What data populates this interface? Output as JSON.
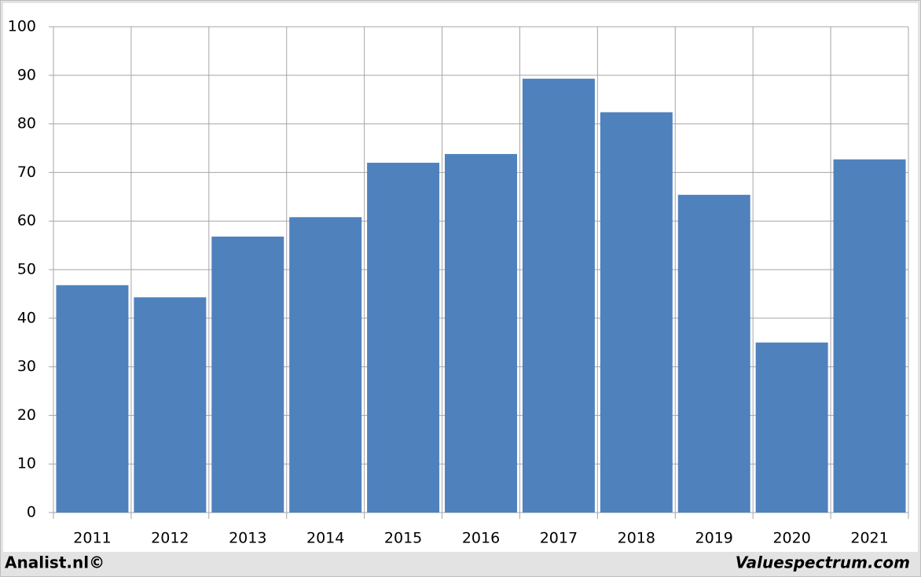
{
  "chart_data": {
    "type": "bar",
    "categories": [
      "2011",
      "2012",
      "2013",
      "2014",
      "2015",
      "2016",
      "2017",
      "2018",
      "2019",
      "2020",
      "2021"
    ],
    "values": [
      46.8,
      44.3,
      56.8,
      60.8,
      72.0,
      73.8,
      89.3,
      82.4,
      65.4,
      35.0,
      72.7
    ],
    "color": "#4f81bd",
    "ylim": [
      0,
      100
    ],
    "yticks": [
      0,
      10,
      20,
      30,
      40,
      50,
      60,
      70,
      80,
      90,
      100
    ],
    "grid": true,
    "annotations": [
      "Analist.nl©",
      "Valuespectrum.com"
    ]
  }
}
